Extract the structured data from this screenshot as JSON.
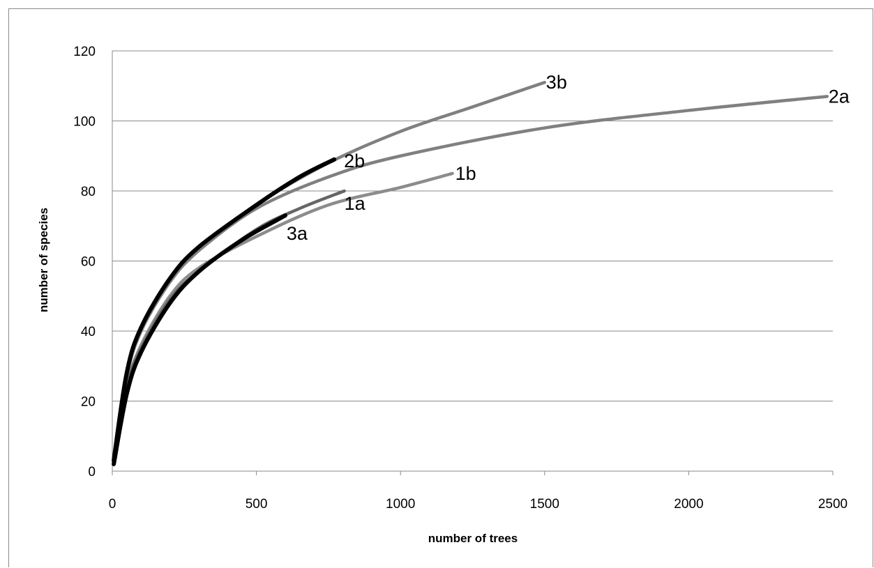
{
  "chart_data": {
    "type": "line",
    "title": "",
    "xlabel": "number of trees",
    "ylabel": "number of species",
    "xlim": [
      0,
      2500
    ],
    "ylim": [
      0,
      120
    ],
    "x_ticks": [
      "0",
      "500",
      "1000",
      "1500",
      "2000",
      "2500"
    ],
    "y_ticks": [
      "0",
      "20",
      "40",
      "60",
      "80",
      "100",
      "120"
    ],
    "grid": "horizontal",
    "legend": "none (series labeled at line ends)",
    "series": [
      {
        "name": "2a",
        "color": "#808080",
        "x": [
          5,
          50,
          100,
          200,
          300,
          500,
          750,
          1000,
          1500,
          2000,
          2480
        ],
        "y": [
          3,
          27,
          40,
          55,
          63,
          75,
          84,
          90,
          98,
          103,
          107
        ]
      },
      {
        "name": "3b",
        "color": "#808080",
        "x": [
          5,
          50,
          100,
          200,
          300,
          500,
          750,
          1000,
          1250,
          1500
        ],
        "y": [
          3,
          27,
          40,
          54,
          63,
          76,
          88,
          97,
          104,
          111
        ]
      },
      {
        "name": "1b",
        "color": "#8c8c8c",
        "x": [
          5,
          50,
          100,
          200,
          300,
          500,
          750,
          1000,
          1180
        ],
        "y": [
          3,
          24,
          36,
          50,
          58,
          67,
          76,
          81,
          85
        ]
      },
      {
        "name": "1a",
        "color": "#666666",
        "x": [
          5,
          50,
          100,
          200,
          300,
          500,
          650,
          805
        ],
        "y": [
          3,
          24,
          35,
          49,
          57,
          69,
          75,
          80
        ]
      },
      {
        "name": "2b",
        "color": "#000000",
        "x": [
          5,
          50,
          100,
          200,
          300,
          500,
          650,
          770
        ],
        "y": [
          3,
          28,
          41,
          55,
          64,
          76,
          84,
          89
        ]
      },
      {
        "name": "3a",
        "color": "#000000",
        "x": [
          5,
          50,
          100,
          200,
          300,
          450,
          600
        ],
        "y": [
          2,
          22,
          34,
          48,
          57,
          66,
          73
        ]
      }
    ]
  }
}
